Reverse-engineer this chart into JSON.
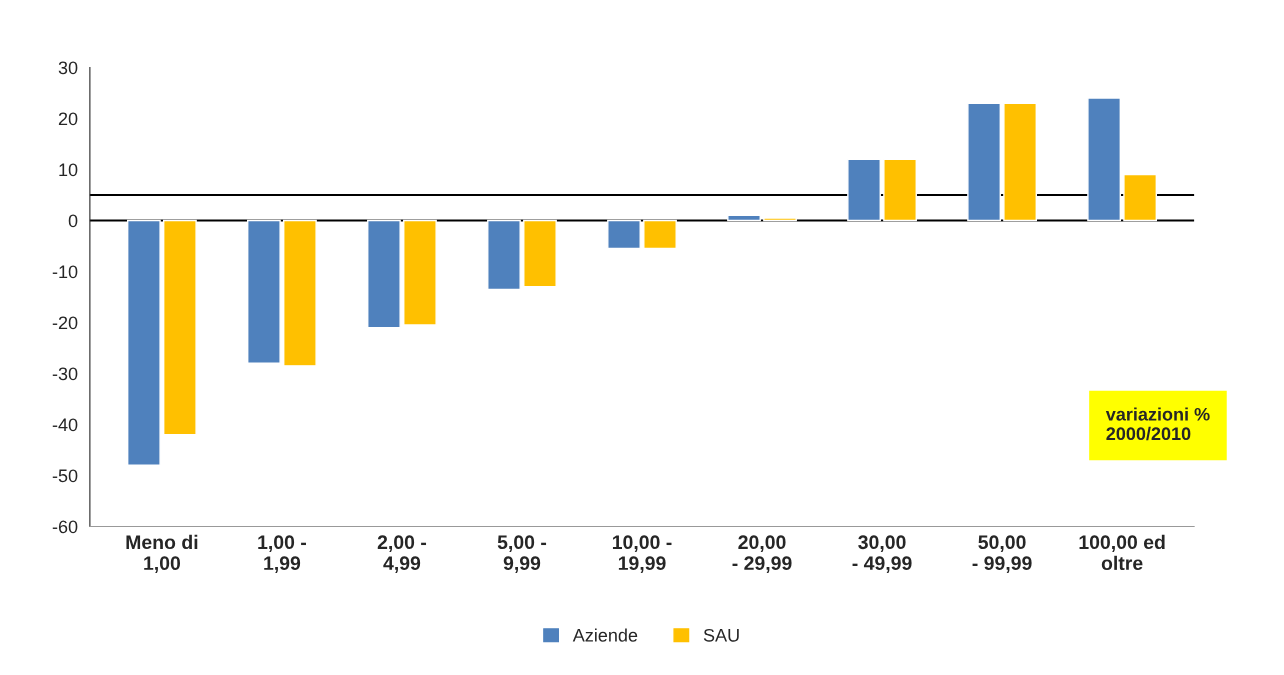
{
  "chart_data": {
    "type": "bar",
    "categories": [
      "Meno di\n1,00",
      "1,00 -\n1,99",
      "2,00 -\n4,99",
      "5,00 -\n9,99",
      "10,00 -\n19,99",
      "20,00\n- 29,99",
      "30,00\n- 49,99",
      "50,00\n- 99,99",
      "100,00 ed\noltre"
    ],
    "series": [
      {
        "name": "Aziende",
        "color": "#4f81bd",
        "values": [
          -48,
          -28,
          -21,
          -13.5,
          -5.5,
          1,
          12,
          23,
          24
        ]
      },
      {
        "name": "SAU",
        "color": "#ffc000",
        "values": [
          -42,
          -28.5,
          -20.5,
          -13,
          -5.5,
          0.5,
          12,
          23,
          9
        ]
      }
    ],
    "ylim": [
      -60,
      30
    ],
    "yticks": [
      -60,
      -50,
      -40,
      -30,
      -20,
      -10,
      0,
      10,
      20,
      30
    ],
    "ref_lines": [
      {
        "axis": "y",
        "value": 0,
        "color": "#000000"
      },
      {
        "axis": "y",
        "value": 5,
        "color": "#000000"
      }
    ],
    "annotations": [
      "variazioni %\n2000/2010"
    ],
    "grid": false,
    "legend": "bottom"
  }
}
